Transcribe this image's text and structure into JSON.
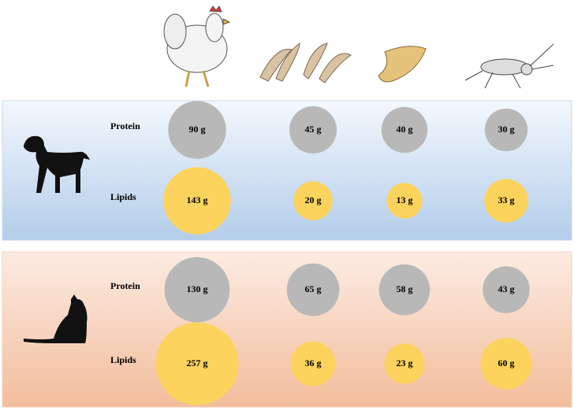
{
  "chart_data": {
    "type": "bubble-grid",
    "groups": [
      {
        "series": [
          {
            "name": "Protein",
            "color": "#b8b8b8",
            "values": [
              90,
              45,
              40,
              30
            ],
            "value_labels": [
              "90 g",
              "45 g",
              "40 g",
              "30 g"
            ]
          },
          {
            "name": "Lipids",
            "color": "#fcd35c",
            "values": [
              143,
              20,
              13,
              33
            ],
            "value_labels": [
              "143 g",
              "20 g",
              "13 g",
              "33 g"
            ]
          }
        ]
      },
      {
        "series": [
          {
            "name": "Protein",
            "color": "#b8b8b8",
            "values": [
              130,
              65,
              58,
              43
            ],
            "value_labels": [
              "130 g",
              "65 g",
              "58 g",
              "43 g"
            ]
          },
          {
            "name": "Lipids",
            "color": "#fcd35c",
            "values": [
              257,
              36,
              23,
              60
            ],
            "value_labels": [
              "257 g",
              "36 g",
              "23 g",
              "60 g"
            ]
          }
        ]
      }
    ]
  }
}
